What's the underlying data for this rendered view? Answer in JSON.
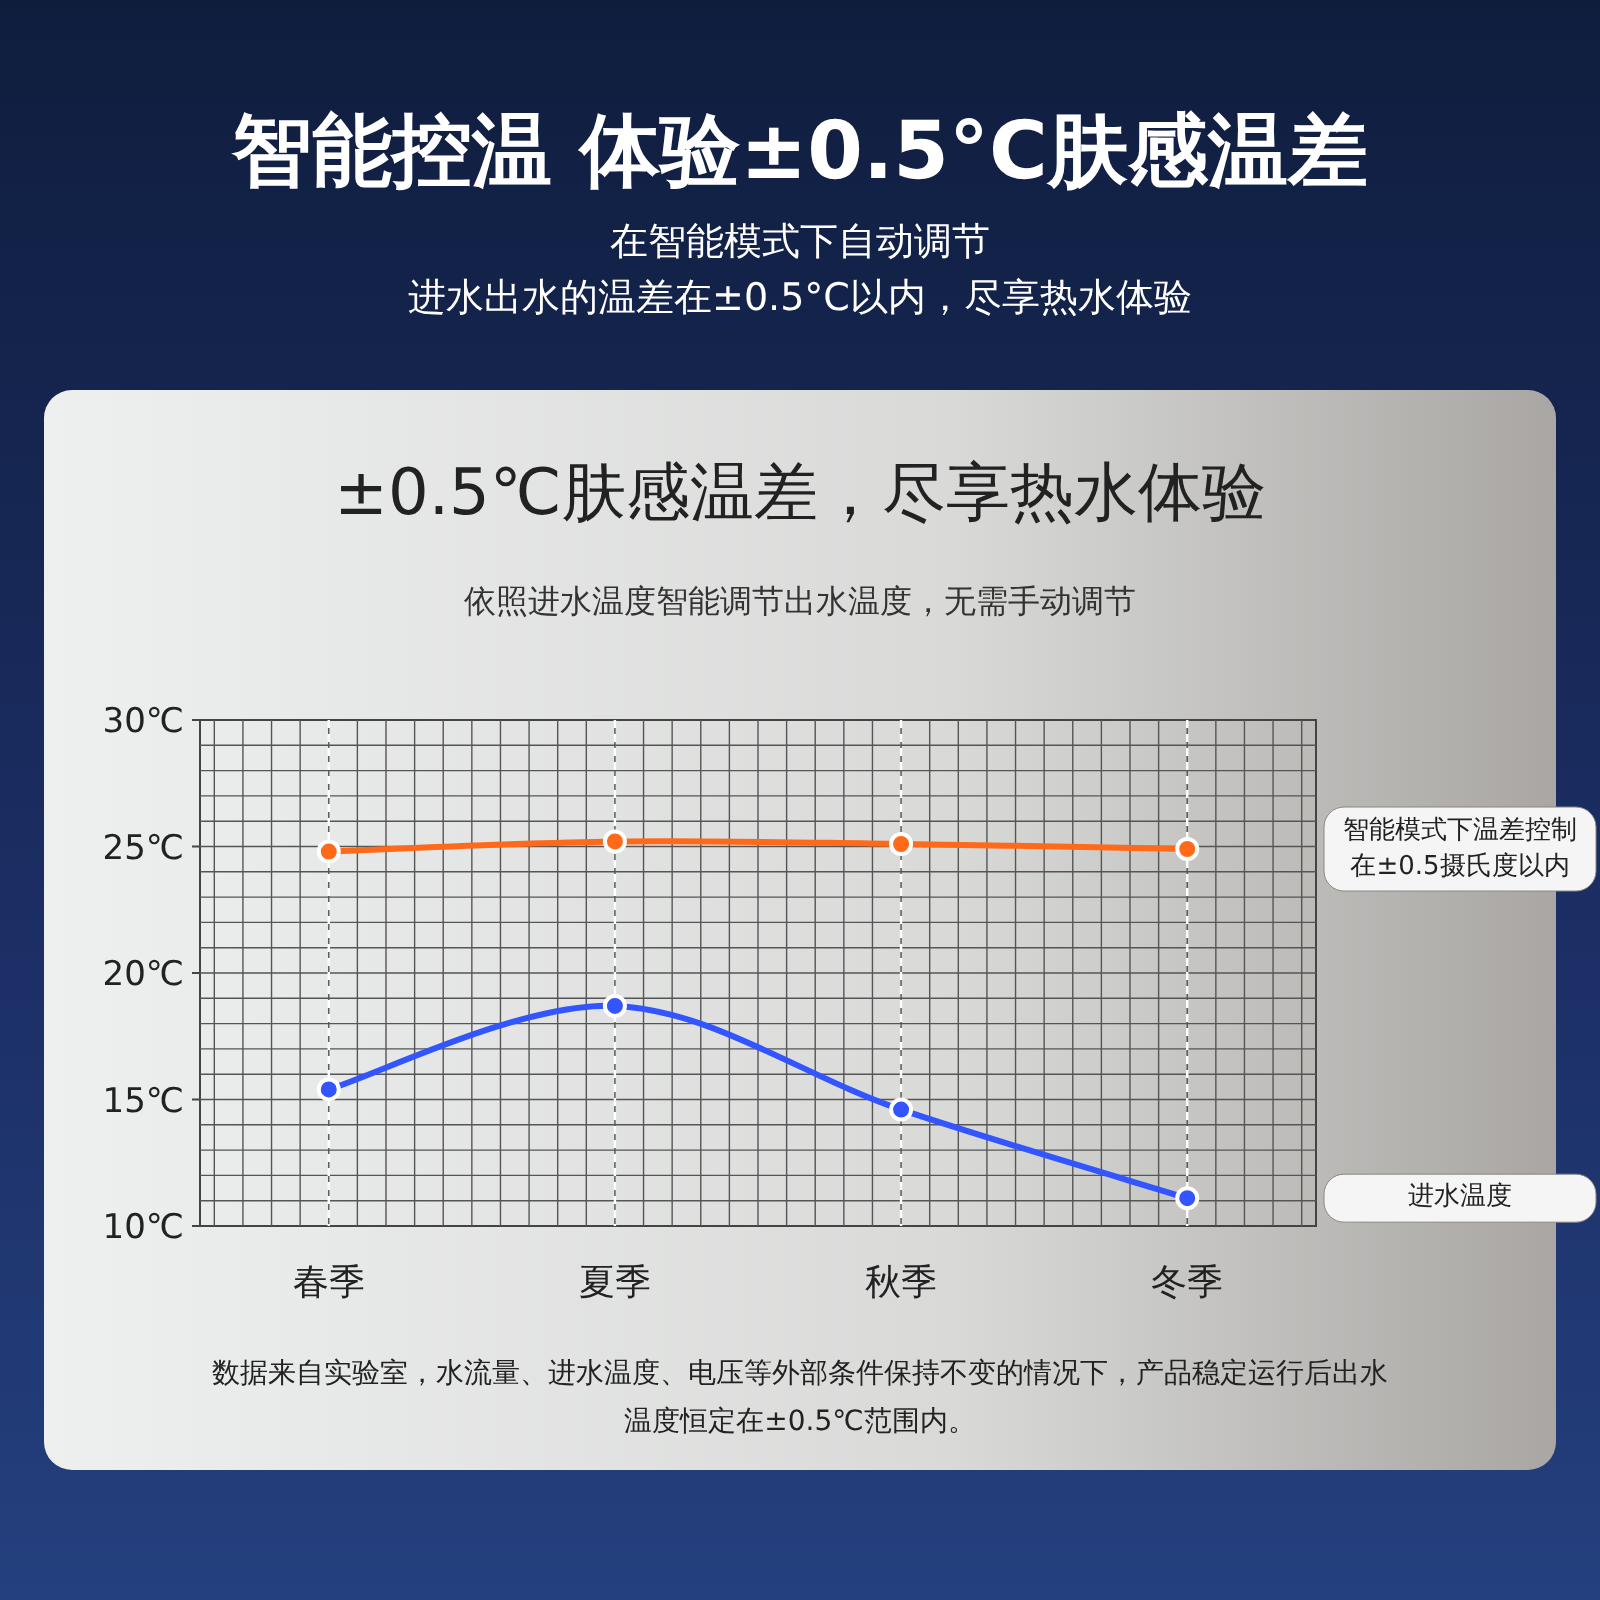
{
  "chart_data": {
    "type": "line",
    "title": "智能控温 体验±0.5°C肤感温差",
    "subtitle": "在智能模式下自动调节",
    "annotations": [
      "进水出水的温差在±0.5°C以内，尽享热水体验",
      "±0.5℃肤感温差，尽享热水体验",
      "依照进水温度智能调节出水温度，无需手动调节",
      "数据来自实验室，水流量、进水温度、电压等外部条件保持不变的情况下，产品稳定运行后出水温度恒定在±0.5℃范围内。"
    ],
    "categories": [
      "春季",
      "夏季",
      "秋季",
      "冬季"
    ],
    "ylim": [
      10,
      30
    ],
    "yticks": [
      {
        "value": 10,
        "label": "10℃"
      },
      {
        "value": 15,
        "label": "15℃"
      },
      {
        "value": 20,
        "label": "20℃"
      },
      {
        "value": 25,
        "label": "25℃"
      },
      {
        "value": 30,
        "label": "30℃"
      }
    ],
    "grid": true,
    "marker": "circle",
    "series": [
      {
        "name": "智能模式下温差控制在±0.5摄氏度以内",
        "color": "#ff6a1a",
        "values": [
          24.8,
          25.2,
          25.1,
          24.9
        ]
      },
      {
        "name": "进水温度",
        "color": "#3355ff",
        "values": [
          15.4,
          18.7,
          14.6,
          11.1
        ]
      }
    ]
  }
}
